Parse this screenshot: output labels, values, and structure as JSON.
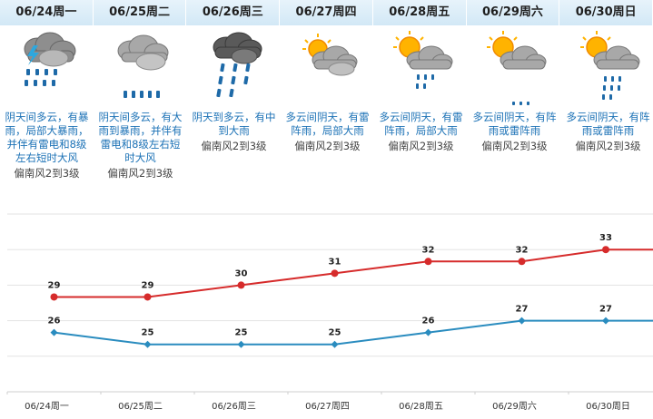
{
  "colors": {
    "high": "#d62b2b",
    "low": "#2a8cbf",
    "grid": "#e3e3e3",
    "text_blue": "#1c72b6"
  },
  "days": [
    {
      "date": "06/24周一",
      "icon": "heavy-rain-icon",
      "desc": "阴天间多云，有暴雨，局部大暴雨，并伴有雷电和8级左右短时大风",
      "wind": "偏南风2到3级"
    },
    {
      "date": "06/25周二",
      "icon": "heavy-rain-icon",
      "desc": "阴天间多云，有大雨到暴雨，并伴有雷电和8级左右短时大风",
      "wind": "偏南风2到3级"
    },
    {
      "date": "06/26周三",
      "icon": "heavy-rain-icon",
      "desc": "阴天到多云，有中到大雨",
      "wind": "偏南风2到3级"
    },
    {
      "date": "06/27周四",
      "icon": "partly-cloudy-icon",
      "desc": "多云间阴天，有雷阵雨，局部大雨",
      "wind": "偏南风2到3级"
    },
    {
      "date": "06/28周五",
      "icon": "thunder-shower-icon",
      "desc": "多云间阴天，有雷阵雨，局部大雨",
      "wind": "偏南风2到3级"
    },
    {
      "date": "06/29周六",
      "icon": "thunder-shower-icon",
      "desc": "多云间阴天，有阵雨或雷阵雨",
      "wind": "偏南风2到3级"
    },
    {
      "date": "06/30周日",
      "icon": "thunder-shower-icon",
      "desc": "多云间阴天，有阵雨或雷阵雨",
      "wind": "偏南风2到3级"
    }
  ],
  "chart_data": {
    "type": "line",
    "categories": [
      "06/24周一",
      "06/25周二",
      "06/26周三",
      "06/27周四",
      "06/28周五",
      "06/29周六",
      "06/30周日"
    ],
    "series": [
      {
        "key": "high",
        "values": [
          29,
          29,
          30,
          31,
          32,
          32,
          33
        ]
      },
      {
        "key": "low",
        "values": [
          26,
          25,
          25,
          25,
          26,
          27,
          27
        ]
      }
    ],
    "ylim": [
      21,
      36
    ],
    "grid": true
  }
}
